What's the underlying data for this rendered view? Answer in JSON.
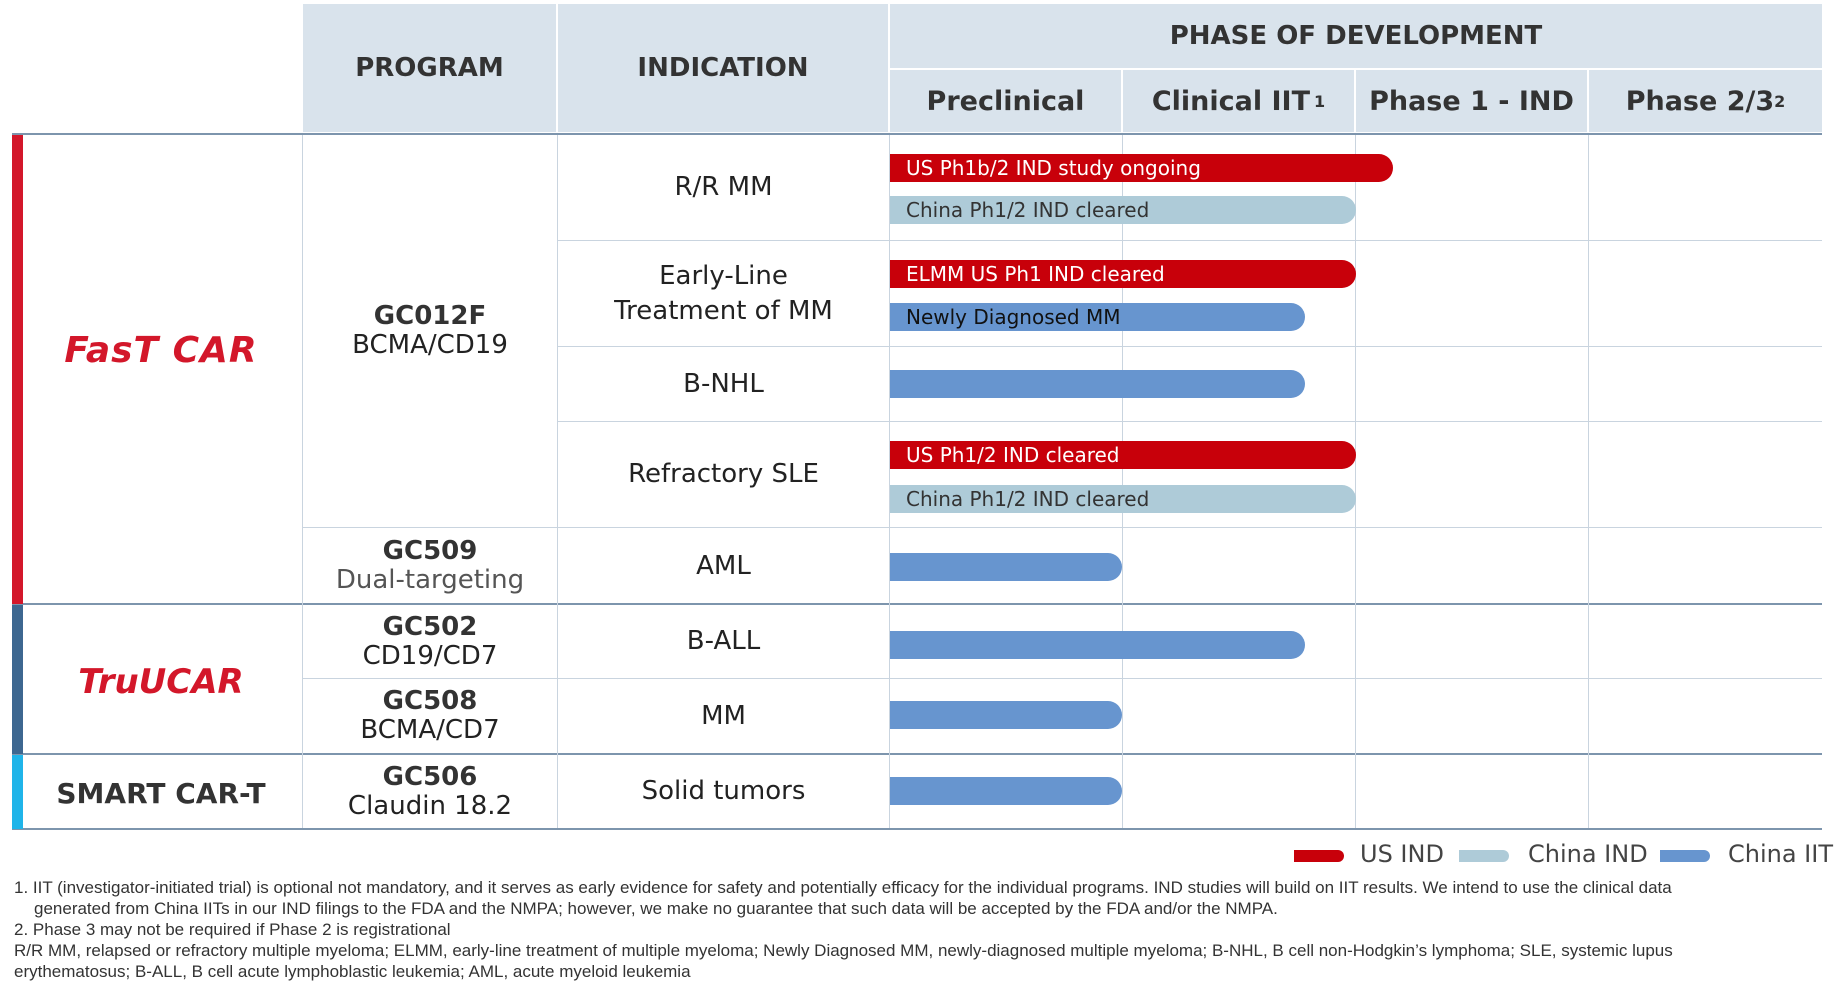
{
  "header": {
    "program": "PROGRAM",
    "indication": "INDICATION",
    "phase_title": "PHASE OF DEVELOPMENT",
    "phases": [
      {
        "label": "Preclinical",
        "sup": ""
      },
      {
        "label": "Clinical IIT",
        "sup": "1"
      },
      {
        "label": "Phase 1 - IND",
        "sup": ""
      },
      {
        "label": "Phase 2/3",
        "sup": "2"
      }
    ]
  },
  "platforms": {
    "fastcar": "FasT CAR",
    "trucar": "TruUCAR",
    "smart": "SMART CAR-T"
  },
  "colors": {
    "fastcar_accent": "#d3172a",
    "trucar_accent": "#3d6790",
    "smart_accent": "#1fb4e9",
    "us_ind": "#c8000a",
    "china_ind": "#aecbd8",
    "china_iit": "#6795cf"
  },
  "programs": {
    "gc012f": {
      "code": "GC012F",
      "target": "BCMA/CD19"
    },
    "gc509": {
      "code": "GC509",
      "target": "Dual-targeting"
    },
    "gc502": {
      "code": "GC502",
      "target": "CD19/CD7"
    },
    "gc508": {
      "code": "GC508",
      "target": "BCMA/CD7"
    },
    "gc506": {
      "code": "GC506",
      "target": "Claudin 18.2"
    }
  },
  "indications": {
    "rrmm": "R/R MM",
    "early_line_1": "Early-Line",
    "early_line_2": "Treatment of MM",
    "bnhl": "B-NHL",
    "sle": "Refractory SLE",
    "aml": "AML",
    "ball": "B-ALL",
    "mm": "MM",
    "solid": "Solid tumors"
  },
  "bars": {
    "rrmm_us": {
      "label": "US Ph1b/2 IND study ongoing",
      "type": "US IND"
    },
    "rrmm_cn": {
      "label": "China Ph1/2 IND cleared",
      "type": "China IND"
    },
    "elmm_us": {
      "label": "ELMM US Ph1 IND cleared",
      "type": "US IND"
    },
    "elmm_cn": {
      "label": "Newly Diagnosed MM",
      "type": "China IIT"
    },
    "bnhl_cn": {
      "label": "",
      "type": "China IIT"
    },
    "sle_us": {
      "label": "US Ph1/2 IND cleared",
      "type": "US IND"
    },
    "sle_cn": {
      "label": "China Ph1/2 IND cleared",
      "type": "China IND"
    },
    "aml_cn": {
      "label": "",
      "type": "China IIT"
    },
    "ball_cn": {
      "label": "",
      "type": "China IIT"
    },
    "mm_cn": {
      "label": "",
      "type": "China IIT"
    },
    "solid_cn": {
      "label": "",
      "type": "China IIT"
    }
  },
  "legend": {
    "us_ind": "US IND",
    "china_ind": "China IND",
    "china_iit": "China IIT"
  },
  "footnotes": {
    "n1_line1": "1.  IIT (investigator-initiated trial) is optional not mandatory, and it serves as early evidence for safety and potentially efficacy for the individual programs. IND studies will build on IIT results. We intend to use the clinical data",
    "n1_line2": "generated from China IITs in our IND filings to the FDA and the NMPA; however, we make no guarantee that such data will be accepted by the FDA and/or the NMPA.",
    "n2": "2.  Phase 3 may not be required if Phase 2 is registrational",
    "abbr_line1": "R/R MM, relapsed or refractory multiple myeloma; ELMM, early-line treatment of multiple myeloma; Newly Diagnosed MM, newly-diagnosed multiple myeloma; B-NHL, B cell non-Hodgkin’s lymphoma; SLE, systemic lupus",
    "abbr_line2": "erythematosus; B-ALL, B cell acute lymphoblastic leukemia; AML, acute myeloid leukemia"
  }
}
